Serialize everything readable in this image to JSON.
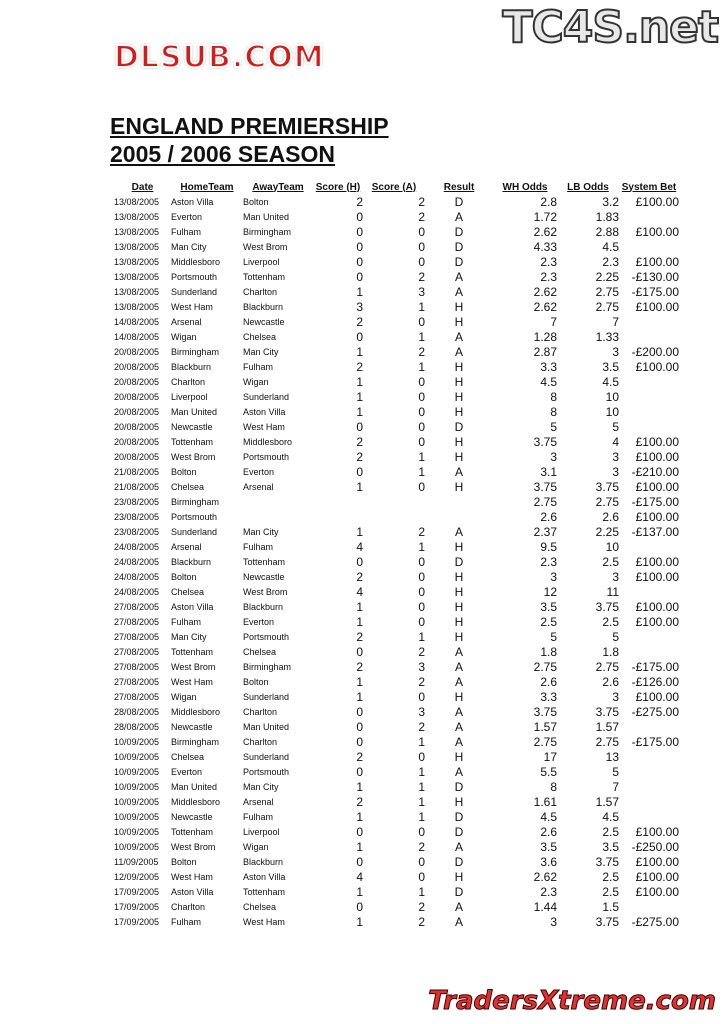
{
  "logos": {
    "top": "TC4S.net",
    "watermark": "DLSUB.COM",
    "bottom": "TradersXtreme.com"
  },
  "title": {
    "line1": "ENGLAND PREMIERSHIP",
    "line2": "2005 / 2006 SEASON"
  },
  "columns": [
    "Date",
    "HomeTeam",
    "AwayTeam",
    "Score (H)",
    "Score (A)",
    "Result",
    "WH Odds",
    "LB Odds",
    "System Bet"
  ],
  "rows": [
    [
      "13/08/2005",
      "Aston Villa",
      "Bolton",
      "2",
      "2",
      "D",
      "2.8",
      "3.2",
      "£100.00"
    ],
    [
      "13/08/2005",
      "Everton",
      "Man United",
      "0",
      "2",
      "A",
      "1.72",
      "1.83",
      ""
    ],
    [
      "13/08/2005",
      "Fulham",
      "Birmingham",
      "0",
      "0",
      "D",
      "2.62",
      "2.88",
      "£100.00"
    ],
    [
      "13/08/2005",
      "Man City",
      "West Brom",
      "0",
      "0",
      "D",
      "4.33",
      "4.5",
      ""
    ],
    [
      "13/08/2005",
      "Middlesboro",
      "Liverpool",
      "0",
      "0",
      "D",
      "2.3",
      "2.3",
      "£100.00"
    ],
    [
      "13/08/2005",
      "Portsmouth",
      "Tottenham",
      "0",
      "2",
      "A",
      "2.3",
      "2.25",
      "-£130.00"
    ],
    [
      "13/08/2005",
      "Sunderland",
      "Charlton",
      "1",
      "3",
      "A",
      "2.62",
      "2.75",
      "-£175.00"
    ],
    [
      "13/08/2005",
      "West Ham",
      "Blackburn",
      "3",
      "1",
      "H",
      "2.62",
      "2.75",
      "£100.00"
    ],
    [
      "14/08/2005",
      "Arsenal",
      "Newcastle",
      "2",
      "0",
      "H",
      "7",
      "7",
      ""
    ],
    [
      "14/08/2005",
      "Wigan",
      "Chelsea",
      "0",
      "1",
      "A",
      "1.28",
      "1.33",
      ""
    ],
    [
      "20/08/2005",
      "Birmingham",
      "Man City",
      "1",
      "2",
      "A",
      "2.87",
      "3",
      "-£200.00"
    ],
    [
      "20/08/2005",
      "Blackburn",
      "Fulham",
      "2",
      "1",
      "H",
      "3.3",
      "3.5",
      "£100.00"
    ],
    [
      "20/08/2005",
      "Charlton",
      "Wigan",
      "1",
      "0",
      "H",
      "4.5",
      "4.5",
      ""
    ],
    [
      "20/08/2005",
      "Liverpool",
      "Sunderland",
      "1",
      "0",
      "H",
      "8",
      "10",
      ""
    ],
    [
      "20/08/2005",
      "Man United",
      "Aston Villa",
      "1",
      "0",
      "H",
      "8",
      "10",
      ""
    ],
    [
      "20/08/2005",
      "Newcastle",
      "West Ham",
      "0",
      "0",
      "D",
      "5",
      "5",
      ""
    ],
    [
      "20/08/2005",
      "Tottenham",
      "Middlesboro",
      "2",
      "0",
      "H",
      "3.75",
      "4",
      "£100.00"
    ],
    [
      "20/08/2005",
      "West Brom",
      "Portsmouth",
      "2",
      "1",
      "H",
      "3",
      "3",
      "£100.00"
    ],
    [
      "21/08/2005",
      "Bolton",
      "Everton",
      "0",
      "1",
      "A",
      "3.1",
      "3",
      "-£210.00"
    ],
    [
      "21/08/2005",
      "Chelsea",
      "Arsenal",
      "1",
      "0",
      "H",
      "3.75",
      "3.75",
      "£100.00"
    ],
    [
      "23/08/2005",
      "Birmingham",
      "",
      "",
      "",
      "",
      "2.75",
      "2.75",
      "-£175.00"
    ],
    [
      "23/08/2005",
      "Portsmouth",
      "",
      "",
      "",
      "",
      "2.6",
      "2.6",
      "£100.00"
    ],
    [
      "23/08/2005",
      "Sunderland",
      "Man City",
      "1",
      "2",
      "A",
      "2.37",
      "2.25",
      "-£137.00"
    ],
    [
      "24/08/2005",
      "Arsenal",
      "Fulham",
      "4",
      "1",
      "H",
      "9.5",
      "10",
      ""
    ],
    [
      "24/08/2005",
      "Blackburn",
      "Tottenham",
      "0",
      "0",
      "D",
      "2.3",
      "2.5",
      "£100.00"
    ],
    [
      "24/08/2005",
      "Bolton",
      "Newcastle",
      "2",
      "0",
      "H",
      "3",
      "3",
      "£100.00"
    ],
    [
      "24/08/2005",
      "Chelsea",
      "West Brom",
      "4",
      "0",
      "H",
      "12",
      "11",
      ""
    ],
    [
      "27/08/2005",
      "Aston Villa",
      "Blackburn",
      "1",
      "0",
      "H",
      "3.5",
      "3.75",
      "£100.00"
    ],
    [
      "27/08/2005",
      "Fulham",
      "Everton",
      "1",
      "0",
      "H",
      "2.5",
      "2.5",
      "£100.00"
    ],
    [
      "27/08/2005",
      "Man City",
      "Portsmouth",
      "2",
      "1",
      "H",
      "5",
      "5",
      ""
    ],
    [
      "27/08/2005",
      "Tottenham",
      "Chelsea",
      "0",
      "2",
      "A",
      "1.8",
      "1.8",
      ""
    ],
    [
      "27/08/2005",
      "West Brom",
      "Birmingham",
      "2",
      "3",
      "A",
      "2.75",
      "2.75",
      "-£175.00"
    ],
    [
      "27/08/2005",
      "West Ham",
      "Bolton",
      "1",
      "2",
      "A",
      "2.6",
      "2.6",
      "-£126.00"
    ],
    [
      "27/08/2005",
      "Wigan",
      "Sunderland",
      "1",
      "0",
      "H",
      "3.3",
      "3",
      "£100.00"
    ],
    [
      "28/08/2005",
      "Middlesboro",
      "Charlton",
      "0",
      "3",
      "A",
      "3.75",
      "3.75",
      "-£275.00"
    ],
    [
      "28/08/2005",
      "Newcastle",
      "Man United",
      "0",
      "2",
      "A",
      "1.57",
      "1.57",
      ""
    ],
    [
      "10/09/2005",
      "Birmingham",
      "Charlton",
      "0",
      "1",
      "A",
      "2.75",
      "2.75",
      "-£175.00"
    ],
    [
      "10/09/2005",
      "Chelsea",
      "Sunderland",
      "2",
      "0",
      "H",
      "17",
      "13",
      ""
    ],
    [
      "10/09/2005",
      "Everton",
      "Portsmouth",
      "0",
      "1",
      "A",
      "5.5",
      "5",
      ""
    ],
    [
      "10/09/2005",
      "Man United",
      "Man City",
      "1",
      "1",
      "D",
      "8",
      "7",
      ""
    ],
    [
      "10/09/2005",
      "Middlesboro",
      "Arsenal",
      "2",
      "1",
      "H",
      "1.61",
      "1.57",
      ""
    ],
    [
      "10/09/2005",
      "Newcastle",
      "Fulham",
      "1",
      "1",
      "D",
      "4.5",
      "4.5",
      ""
    ],
    [
      "10/09/2005",
      "Tottenham",
      "Liverpool",
      "0",
      "0",
      "D",
      "2.6",
      "2.5",
      "£100.00"
    ],
    [
      "10/09/2005",
      "West Brom",
      "Wigan",
      "1",
      "2",
      "A",
      "3.5",
      "3.5",
      "-£250.00"
    ],
    [
      "11/09/2005",
      "Bolton",
      "Blackburn",
      "0",
      "0",
      "D",
      "3.6",
      "3.75",
      "£100.00"
    ],
    [
      "12/09/2005",
      "West Ham",
      "Aston Villa",
      "4",
      "0",
      "H",
      "2.62",
      "2.5",
      "£100.00"
    ],
    [
      "17/09/2005",
      "Aston Villa",
      "Tottenham",
      "1",
      "1",
      "D",
      "2.3",
      "2.5",
      "£100.00"
    ],
    [
      "17/09/2005",
      "Charlton",
      "Chelsea",
      "0",
      "2",
      "A",
      "1.44",
      "1.5",
      ""
    ],
    [
      "17/09/2005",
      "Fulham",
      "West Ham",
      "1",
      "2",
      "A",
      "3",
      "3.75",
      "-£275.00"
    ]
  ]
}
